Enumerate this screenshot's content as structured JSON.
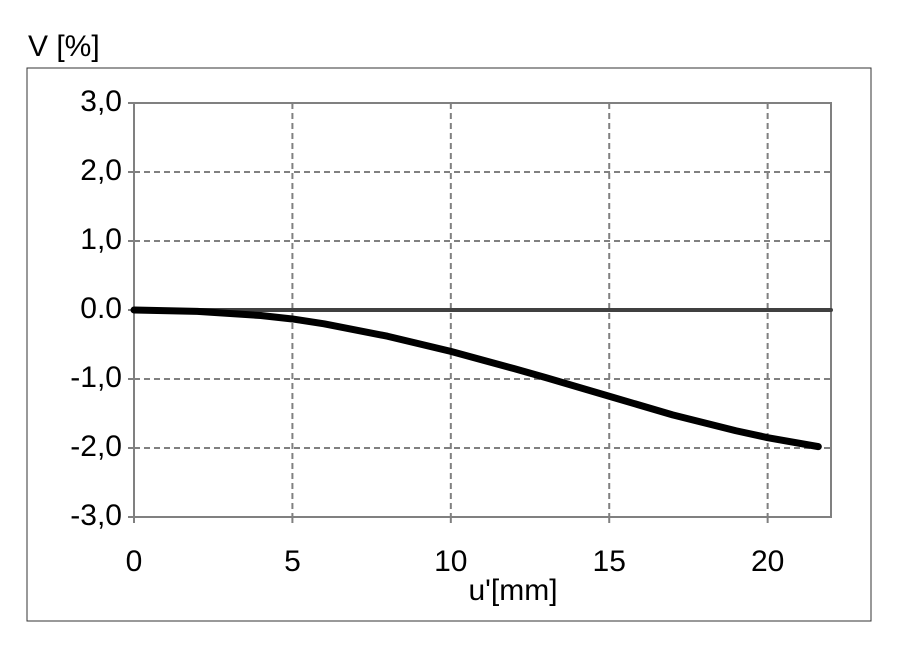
{
  "chart_data": {
    "type": "line",
    "ylabel": "V [%]",
    "xlabel": "u'[mm]",
    "xlim": [
      0,
      22
    ],
    "xticks": [
      0,
      5,
      10,
      15,
      20
    ],
    "ylim": [
      -3,
      3
    ],
    "yticks": [
      {
        "value": 3,
        "label": "3,0"
      },
      {
        "value": 2,
        "label": "2,0"
      },
      {
        "value": 1,
        "label": "1,0"
      },
      {
        "value": 0,
        "label": "0.0"
      },
      {
        "value": -1,
        "label": "-1,0"
      },
      {
        "value": -2,
        "label": "-2,0"
      },
      {
        "value": -3,
        "label": "-3,0"
      }
    ],
    "grid": true,
    "series": [
      {
        "color": "#000000",
        "x": [
          0,
          2,
          4,
          5,
          6,
          8,
          10,
          12,
          13,
          15,
          17,
          19,
          20,
          21.6
        ],
        "values": [
          0,
          -0.02,
          -0.08,
          -0.13,
          -0.2,
          -0.38,
          -0.6,
          -0.85,
          -0.98,
          -1.25,
          -1.52,
          -1.75,
          -1.85,
          -1.98
        ]
      },
      {
        "color": "#404040",
        "x": [
          0,
          22
        ],
        "values": [
          0,
          0
        ]
      }
    ]
  }
}
